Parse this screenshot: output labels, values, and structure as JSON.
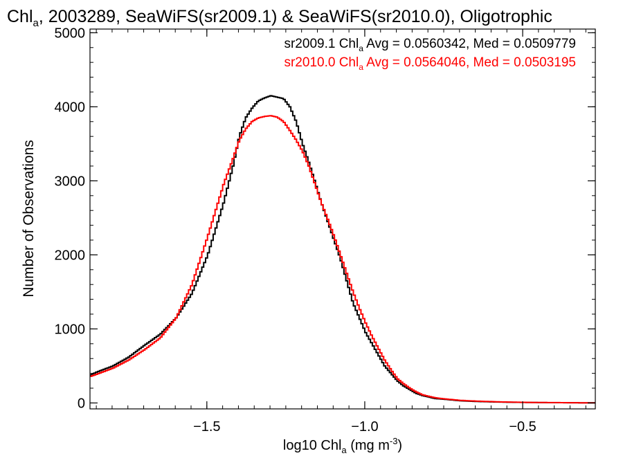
{
  "chart_data": {
    "type": "line",
    "title_parts": {
      "chl": "Chl",
      "sub": "a",
      "rest": ", 2003289, SeaWiFS(sr2009.1) & SeaWiFS(sr2010.0), Oligotrophic"
    },
    "xlabel_parts": {
      "pre": "log10 Chl",
      "sub": "a",
      "mid": " (mg m",
      "sup": "-3",
      "post": ")"
    },
    "ylabel": "Number of Observations",
    "xlim": [
      -1.87,
      -0.27
    ],
    "ylim": [
      -80,
      5050
    ],
    "x_ticks": [
      -1.5,
      -1.0,
      -0.5
    ],
    "x_tick_labels": [
      "−1.5",
      "−1.0",
      "−0.5"
    ],
    "x_minor_step": 0.05,
    "y_ticks": [
      0,
      1000,
      2000,
      3000,
      4000,
      5000
    ],
    "y_tick_labels": [
      "0",
      "1000",
      "2000",
      "3000",
      "4000",
      "5000"
    ],
    "y_minor_step": 200,
    "grid": false,
    "legend_position": "top-right",
    "series": [
      {
        "name_parts": {
          "pre": "sr2009.1 Chl",
          "sub": "a",
          "post": " Avg = 0.0560342, Med = 0.0509779"
        },
        "color": "#000000",
        "x": [
          -1.87,
          -1.85,
          -1.8,
          -1.75,
          -1.7,
          -1.65,
          -1.6,
          -1.55,
          -1.5,
          -1.45,
          -1.42,
          -1.4,
          -1.38,
          -1.36,
          -1.34,
          -1.32,
          -1.3,
          -1.28,
          -1.26,
          -1.24,
          -1.22,
          -1.2,
          -1.18,
          -1.16,
          -1.14,
          -1.12,
          -1.1,
          -1.08,
          -1.06,
          -1.04,
          -1.02,
          -1.0,
          -0.98,
          -0.96,
          -0.94,
          -0.92,
          -0.9,
          -0.88,
          -0.86,
          -0.84,
          -0.82,
          -0.8,
          -0.78,
          -0.75,
          -0.7,
          -0.65,
          -0.6,
          -0.55,
          -0.5,
          -0.45,
          -0.4,
          -0.35,
          -0.3,
          -0.27
        ],
        "y": [
          380,
          420,
          500,
          620,
          780,
          930,
          1150,
          1480,
          2000,
          2700,
          3200,
          3600,
          3850,
          3980,
          4080,
          4120,
          4150,
          4130,
          4110,
          4000,
          3800,
          3500,
          3250,
          2980,
          2700,
          2450,
          2200,
          1950,
          1650,
          1350,
          1150,
          950,
          800,
          650,
          500,
          400,
          300,
          230,
          180,
          130,
          100,
          80,
          60,
          50,
          30,
          20,
          15,
          10,
          8,
          5,
          4,
          3,
          2,
          2
        ]
      },
      {
        "name_parts": {
          "pre": "sr2010.0 Chl",
          "sub": "a",
          "post": " Avg = 0.0564046, Med = 0.0503195"
        },
        "color": "#ff0000",
        "x": [
          -1.87,
          -1.85,
          -1.8,
          -1.75,
          -1.7,
          -1.65,
          -1.6,
          -1.55,
          -1.5,
          -1.45,
          -1.42,
          -1.4,
          -1.38,
          -1.36,
          -1.34,
          -1.32,
          -1.3,
          -1.28,
          -1.26,
          -1.24,
          -1.22,
          -1.2,
          -1.18,
          -1.16,
          -1.14,
          -1.12,
          -1.1,
          -1.08,
          -1.06,
          -1.04,
          -1.02,
          -1.0,
          -0.98,
          -0.96,
          -0.94,
          -0.92,
          -0.9,
          -0.88,
          -0.86,
          -0.84,
          -0.82,
          -0.8,
          -0.78,
          -0.75,
          -0.7,
          -0.65,
          -0.6,
          -0.55,
          -0.5,
          -0.45,
          -0.4,
          -0.35,
          -0.3,
          -0.27
        ],
        "y": [
          360,
          390,
          470,
          580,
          720,
          880,
          1150,
          1600,
          2250,
          2950,
          3300,
          3550,
          3700,
          3800,
          3850,
          3870,
          3880,
          3860,
          3800,
          3680,
          3550,
          3400,
          3200,
          2950,
          2700,
          2480,
          2250,
          2000,
          1750,
          1500,
          1280,
          1080,
          900,
          740,
          580,
          450,
          330,
          260,
          200,
          150,
          110,
          90,
          70,
          55,
          35,
          25,
          18,
          12,
          9,
          6,
          5,
          3,
          2,
          2
        ]
      }
    ]
  }
}
